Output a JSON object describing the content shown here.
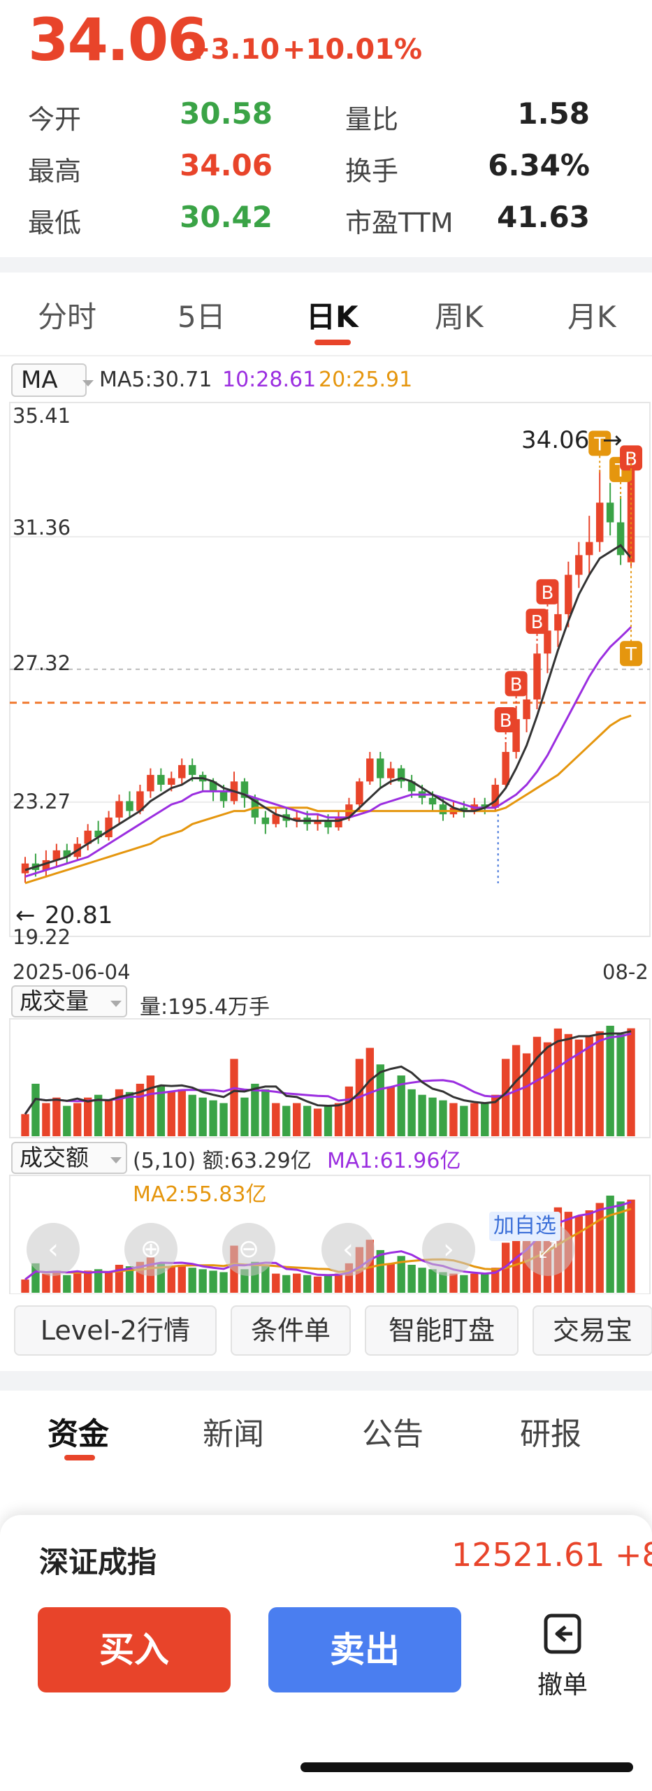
{
  "colors": {
    "up": "#e8442a",
    "down": "#3aa346",
    "ma5": "#333333",
    "ma10": "#9b2ee0",
    "ma20": "#e5960e",
    "accent": "#e8442a",
    "buy": "#e8442a",
    "sell": "#4a7ef0"
  },
  "quote": {
    "price": "34.06",
    "change": "+3.10",
    "change_pct": "+10.01%",
    "stats": {
      "open_label": "今开",
      "open_value": "30.58",
      "high_label": "最高",
      "high_value": "34.06",
      "low_label": "最低",
      "low_value": "30.42",
      "vol_ratio_label": "量比",
      "vol_ratio_value": "1.58",
      "turnover_label": "换手",
      "turnover_value": "6.34%",
      "pe_label": "市盈TTM",
      "pe_value": "41.63"
    }
  },
  "period_tabs": [
    "分时",
    "5日",
    "日K",
    "周K",
    "月K"
  ],
  "period_active": "日K",
  "chart": {
    "ma_selector": "MA",
    "ma5_text": "MA5:30.71",
    "ma10_text": "10:28.61",
    "ma20_text": "20:25.91",
    "y_ticks": [
      "35.41",
      "31.36",
      "27.32",
      "23.27",
      "19.22"
    ],
    "high_marker": "34.06",
    "low_marker": "20.81",
    "date_start": "2025-06-04",
    "date_end": "08-2",
    "add_favorite": "加自选",
    "volume_selector": "成交量",
    "volume_text": "量:195.4万手",
    "amount_selector": "成交额",
    "amount_text": "(5,10) 额:63.29亿",
    "amount_ma1_text": "MA1:61.96亿",
    "amount_ma2_text": "MA2:55.83亿",
    "signals": [
      "B",
      "T"
    ]
  },
  "chart_data": {
    "type": "candlestick",
    "y_range": [
      19.22,
      35.41
    ],
    "x_start": "2025-06-04",
    "candles": [
      [
        21.1,
        21.4,
        20.81,
        21.6
      ],
      [
        21.4,
        21.2,
        21.0,
        21.7
      ],
      [
        21.2,
        21.5,
        21.0,
        21.8
      ],
      [
        21.5,
        21.8,
        21.3,
        22.0
      ],
      [
        21.8,
        21.6,
        21.4,
        22.0
      ],
      [
        21.6,
        22.0,
        21.5,
        22.2
      ],
      [
        22.0,
        22.4,
        21.8,
        22.6
      ],
      [
        22.4,
        22.2,
        22.0,
        22.7
      ],
      [
        22.2,
        22.8,
        22.1,
        23.0
      ],
      [
        22.8,
        23.3,
        22.6,
        23.5
      ],
      [
        23.3,
        23.0,
        22.8,
        23.6
      ],
      [
        23.0,
        23.6,
        22.9,
        23.8
      ],
      [
        23.6,
        24.1,
        23.4,
        24.3
      ],
      [
        24.1,
        23.8,
        23.6,
        24.3
      ],
      [
        23.8,
        24.0,
        23.6,
        24.2
      ],
      [
        24.0,
        24.4,
        23.8,
        24.6
      ],
      [
        24.4,
        24.1,
        23.9,
        24.6
      ],
      [
        24.1,
        23.9,
        23.6,
        24.2
      ],
      [
        23.9,
        23.6,
        23.3,
        24.0
      ],
      [
        23.6,
        23.3,
        23.1,
        23.8
      ],
      [
        23.3,
        23.9,
        23.2,
        24.2
      ],
      [
        23.9,
        23.4,
        23.1,
        24.0
      ],
      [
        23.4,
        22.8,
        22.6,
        23.5
      ],
      [
        22.8,
        22.6,
        22.3,
        23.0
      ],
      [
        22.6,
        22.9,
        22.5,
        23.1
      ],
      [
        22.9,
        22.7,
        22.5,
        23.1
      ],
      [
        22.7,
        22.8,
        22.5,
        23.0
      ],
      [
        22.8,
        22.6,
        22.4,
        23.0
      ],
      [
        22.6,
        22.7,
        22.4,
        22.9
      ],
      [
        22.7,
        22.5,
        22.3,
        22.9
      ],
      [
        22.5,
        22.8,
        22.4,
        23.0
      ],
      [
        22.8,
        23.2,
        22.7,
        23.4
      ],
      [
        23.2,
        23.9,
        23.0,
        24.0
      ],
      [
        23.9,
        24.6,
        23.8,
        24.8
      ],
      [
        24.6,
        24.0,
        23.7,
        24.8
      ],
      [
        24.0,
        24.3,
        23.8,
        24.5
      ],
      [
        24.3,
        23.9,
        23.7,
        24.4
      ],
      [
        23.9,
        23.6,
        23.4,
        24.1
      ],
      [
        23.6,
        23.4,
        23.2,
        23.8
      ],
      [
        23.4,
        23.2,
        23.0,
        23.6
      ],
      [
        23.2,
        22.9,
        22.7,
        23.4
      ],
      [
        22.9,
        23.1,
        22.8,
        23.3
      ],
      [
        23.1,
        23.0,
        22.8,
        23.3
      ],
      [
        23.0,
        23.2,
        22.9,
        23.4
      ],
      [
        23.2,
        23.1,
        22.9,
        23.4
      ],
      [
        23.1,
        23.8,
        23.0,
        24.0
      ],
      [
        23.8,
        24.8,
        23.7,
        25.1
      ],
      [
        24.8,
        25.8,
        24.6,
        26.2
      ],
      [
        25.8,
        26.4,
        25.4,
        26.7
      ],
      [
        26.4,
        27.8,
        26.1,
        28.1
      ],
      [
        27.8,
        28.5,
        27.2,
        29.0
      ],
      [
        28.5,
        29.0,
        28.0,
        29.4
      ],
      [
        29.0,
        30.2,
        28.6,
        30.6
      ],
      [
        30.2,
        30.8,
        29.8,
        31.2
      ],
      [
        30.8,
        31.2,
        30.2,
        32.0
      ],
      [
        31.2,
        32.4,
        30.9,
        33.4
      ],
      [
        32.4,
        31.8,
        31.4,
        33.0
      ],
      [
        31.8,
        30.8,
        30.5,
        32.6
      ],
      [
        30.58,
        34.06,
        30.42,
        34.06
      ]
    ],
    "ma5": [
      21.2,
      21.3,
      21.4,
      21.5,
      21.6,
      21.8,
      22.0,
      22.2,
      22.4,
      22.6,
      22.8,
      23.0,
      23.3,
      23.5,
      23.7,
      23.8,
      24.0,
      24.0,
      23.9,
      23.7,
      23.6,
      23.5,
      23.3,
      23.1,
      22.9,
      22.8,
      22.7,
      22.7,
      22.7,
      22.7,
      22.7,
      22.8,
      23.1,
      23.4,
      23.7,
      23.9,
      24.0,
      23.9,
      23.7,
      23.5,
      23.3,
      23.1,
      23.0,
      23.0,
      23.1,
      23.3,
      23.7,
      24.3,
      25.0,
      25.9,
      26.9,
      27.9,
      28.8,
      29.6,
      30.2,
      30.7,
      30.9,
      31.1,
      30.71
    ],
    "ma10": [
      21.0,
      21.1,
      21.2,
      21.3,
      21.4,
      21.5,
      21.6,
      21.8,
      22.0,
      22.2,
      22.4,
      22.6,
      22.8,
      23.0,
      23.2,
      23.3,
      23.5,
      23.6,
      23.6,
      23.6,
      23.6,
      23.5,
      23.4,
      23.3,
      23.2,
      23.1,
      23.0,
      22.9,
      22.9,
      22.8,
      22.8,
      22.8,
      22.9,
      23.0,
      23.2,
      23.3,
      23.4,
      23.5,
      23.5,
      23.5,
      23.4,
      23.3,
      23.2,
      23.1,
      23.1,
      23.1,
      23.3,
      23.5,
      23.8,
      24.2,
      24.7,
      25.3,
      25.9,
      26.5,
      27.1,
      27.6,
      28.0,
      28.3,
      28.61
    ],
    "ma20": [
      20.8,
      20.9,
      21.0,
      21.1,
      21.2,
      21.3,
      21.4,
      21.5,
      21.6,
      21.7,
      21.8,
      21.9,
      22.0,
      22.2,
      22.3,
      22.4,
      22.6,
      22.7,
      22.8,
      22.9,
      23.0,
      23.0,
      23.1,
      23.1,
      23.1,
      23.1,
      23.1,
      23.1,
      23.0,
      23.0,
      23.0,
      23.0,
      23.0,
      23.0,
      23.0,
      23.0,
      23.0,
      23.0,
      23.0,
      23.0,
      23.0,
      23.0,
      23.0,
      23.0,
      23.0,
      23.0,
      23.1,
      23.3,
      23.5,
      23.7,
      23.9,
      24.1,
      24.4,
      24.7,
      25.0,
      25.3,
      25.6,
      25.8,
      25.91
    ],
    "volume_range": [
      0,
      210
    ],
    "volume": [
      40,
      95,
      60,
      70,
      55,
      60,
      70,
      75,
      65,
      85,
      80,
      95,
      110,
      90,
      80,
      85,
      75,
      70,
      65,
      60,
      140,
      70,
      95,
      85,
      60,
      55,
      60,
      55,
      50,
      55,
      60,
      90,
      140,
      160,
      130,
      90,
      110,
      85,
      75,
      70,
      65,
      60,
      55,
      60,
      60,
      75,
      140,
      165,
      150,
      180,
      170,
      195,
      185,
      175,
      180,
      190,
      200,
      185,
      195.4
    ],
    "amount_range": [
      0,
      75
    ],
    "amount": [
      9,
      20,
      13,
      15,
      12,
      13,
      15,
      16,
      14,
      19,
      18,
      21,
      24,
      20,
      18,
      19,
      17,
      16,
      15,
      14,
      32,
      16,
      21,
      19,
      13,
      12,
      13,
      12,
      11,
      12,
      13,
      20,
      31,
      36,
      29,
      20,
      25,
      19,
      17,
      16,
      14,
      13,
      12,
      13,
      13,
      17,
      34,
      42,
      40,
      50,
      47,
      58,
      55,
      52,
      56,
      61,
      66,
      62,
      63.29
    ]
  },
  "quick_actions": [
    "Level-2行情",
    "条件单",
    "智能盯盘",
    "交易宝"
  ],
  "content_tabs": [
    "资金",
    "新闻",
    "公告",
    "研报"
  ],
  "content_active": "资金",
  "bottom": {
    "index_name": "深证成指",
    "index_value": "12521.61",
    "index_change": "+8",
    "buy_label": "买入",
    "sell_label": "卖出",
    "cancel_label": "撤单"
  }
}
